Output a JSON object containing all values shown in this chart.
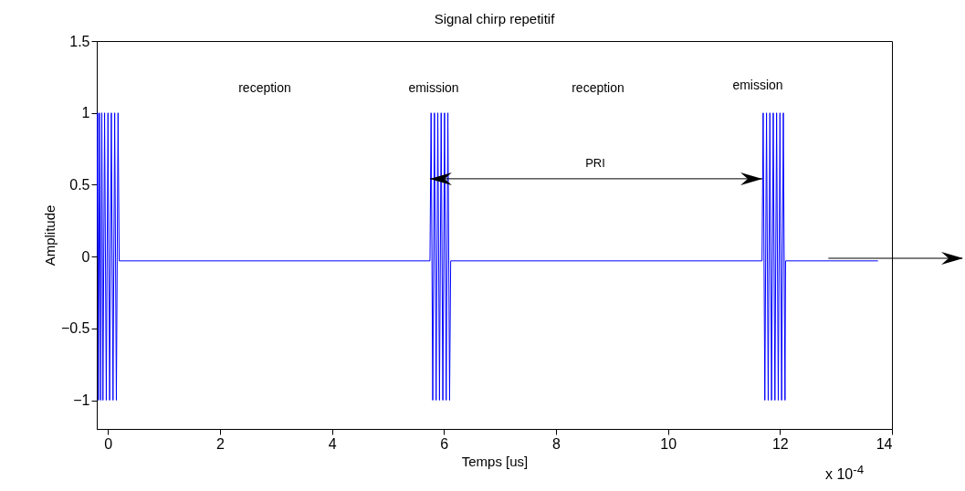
{
  "chart_data": {
    "type": "line",
    "title": "Signal chirp repetitif",
    "xlabel": "Temps [us]",
    "ylabel": "Amplitude",
    "x": [
      -0.2,
      -0.185,
      -0.17,
      -0.15,
      -0.13,
      -0.11,
      -0.09,
      -0.06,
      -0.03,
      0,
      0.03,
      0.06,
      0.09,
      0.12,
      0.15,
      0.18,
      0.2,
      5.75,
      5.77,
      5.8,
      5.83,
      5.86,
      5.89,
      5.92,
      5.95,
      5.98,
      6.01,
      6.04,
      6.07,
      6.1,
      6.12,
      11.68,
      11.7,
      11.73,
      11.76,
      11.79,
      11.82,
      11.85,
      11.88,
      11.91,
      11.94,
      11.97,
      12.0,
      12.03,
      12.06,
      12.09,
      12.1,
      13.75
    ],
    "series": [
      {
        "color": "#0000ff",
        "values": [
          0,
          1,
          -1,
          1,
          -1,
          1,
          -1,
          1,
          -1,
          1,
          -1,
          1,
          -1,
          1,
          -1,
          1,
          -0.03,
          -0.03,
          1,
          -1,
          1,
          -1,
          1,
          -1,
          1,
          -1,
          1,
          -1,
          1,
          -1,
          -0.03,
          -0.03,
          1,
          -1,
          1,
          -1,
          1,
          -1,
          1,
          -1,
          1,
          -1,
          1,
          -1,
          1,
          -1,
          -0.03,
          -0.03
        ]
      }
    ],
    "xlim": [
      -0.2,
      14
    ],
    "xticks": [
      0,
      2,
      4,
      6,
      8,
      10,
      12,
      14
    ],
    "ylim": [
      -1.2,
      1.5
    ],
    "yticks": [
      -1,
      -0.5,
      0,
      0.5,
      1,
      1.5
    ],
    "annotations": [
      "reception",
      "emission",
      "reception",
      "emission",
      "PRI",
      "x 10$^{-4}$"
    ]
  }
}
